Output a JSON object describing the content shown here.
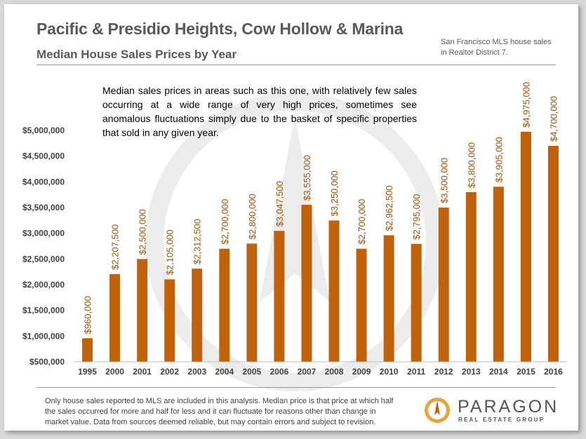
{
  "header": {
    "title": "Pacific & Presidio Heights, Cow Hollow & Marina",
    "subtitle": "Median House Sales Prices by Year",
    "source_note": "San Francisco MLS house sales in Realtor District 7."
  },
  "annotation": "Median sales prices in areas such as this one, with relatively few sales occurring at a wide range of very high prices, sometimes see anomalous fluctuations simply due to the basket of specific properties that sold in any given year.",
  "footer": {
    "disclaimer": "Only house sales reported to MLS are included in this analysis. Median price is that price at which half the sales occurred for more and half for less and it can fluctuate for reasons other than change in market value.  Data from sources deemed reliable, but may contain errors and subject to revision."
  },
  "logo": {
    "name": "PARAGON",
    "tagline": "REAL ESTATE GROUP"
  },
  "colors": {
    "bar": "#c0620c",
    "label": "#a0520a",
    "axis_text": "#404040",
    "watermark": "#ececec"
  },
  "chart_data": {
    "type": "bar",
    "categories": [
      "1995",
      "2000",
      "2001",
      "2002",
      "2003",
      "2004",
      "2005",
      "2006",
      "2007",
      "2008",
      "2009",
      "2010",
      "2011",
      "2012",
      "2013",
      "2014",
      "2015",
      "2016"
    ],
    "values": [
      960000,
      2207500,
      2500000,
      2105000,
      2312500,
      2700000,
      2800000,
      3047500,
      3555000,
      3250000,
      2700000,
      2962500,
      2795000,
      3500000,
      3800000,
      3905000,
      4975000,
      4700000
    ],
    "data_labels": [
      "$960,000",
      "$2,207,500",
      "$2,500,000",
      "$2,105,000",
      "$2,312,500",
      "$2,700,000",
      "$2,800,000",
      "$3,047,500",
      "$3,555,000",
      "$3,250,000",
      "$2,700,000",
      "$2,962,500",
      "$2,795,000",
      "$3,500,000",
      "$3,800,000",
      "$3,905,000",
      "$4,975,000",
      "$4,700,000"
    ],
    "y_ticks": [
      500000,
      1000000,
      1500000,
      2000000,
      2500000,
      3000000,
      3500000,
      4000000,
      4500000,
      5000000
    ],
    "y_tick_labels": [
      "$500,000",
      "$1,000,000",
      "$1,500,000",
      "$2,000,000",
      "$2,500,000",
      "$3,000,000",
      "$3,500,000",
      "$4,000,000",
      "$4,500,000",
      "$5,000,000"
    ],
    "ylim": [
      500000,
      5000000
    ],
    "grid": false,
    "legend": "none"
  }
}
